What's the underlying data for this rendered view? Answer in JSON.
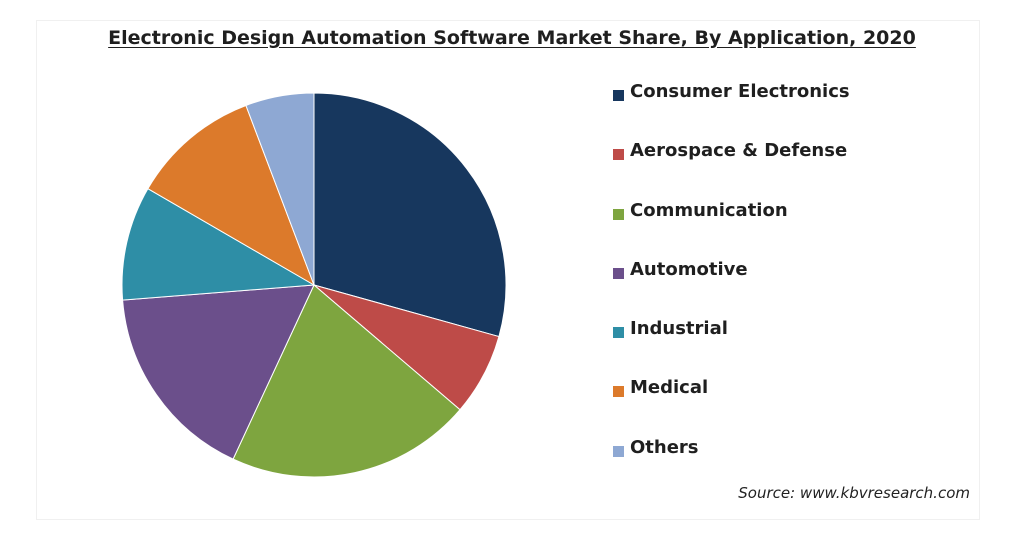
{
  "chart_data": {
    "type": "pie",
    "title": "Electronic Design Automation Software Market Share, By Application, 2020",
    "categories": [
      "Consumer Electronics",
      "Aerospace & Defense",
      "Communication",
      "Automotive",
      "Industrial",
      "Medical",
      "Others"
    ],
    "values": [
      30.5,
      7.2,
      21.5,
      17.5,
      10.0,
      11.3,
      6.0
    ],
    "colors": [
      "#17375e",
      "#be4b48",
      "#7ea53f",
      "#6b4f8b",
      "#2e8ea6",
      "#dc7a2b",
      "#8ea8d3"
    ],
    "start_angle_deg": 0,
    "direction": "clockwise",
    "legend_position": "right",
    "source": "Source: www.kbvresearch.com"
  }
}
